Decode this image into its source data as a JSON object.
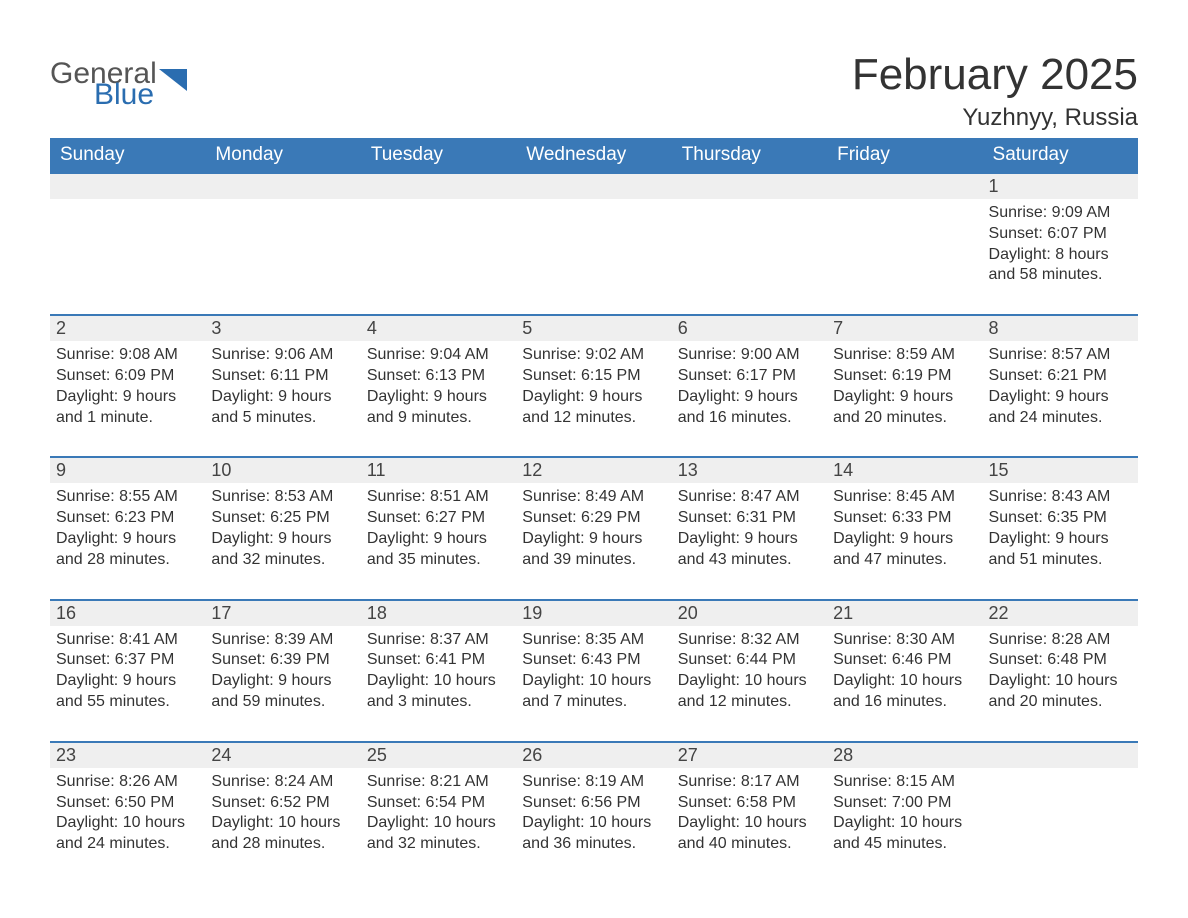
{
  "brand": {
    "part1": "General",
    "part2": "Blue"
  },
  "title": "February 2025",
  "location": "Yuzhnyy, Russia",
  "colors": {
    "header_bg": "#3a79b7",
    "header_text": "#ffffff",
    "daynum_bg": "#efefef",
    "border": "#3a79b7",
    "body_text": "#333333",
    "page_bg": "#ffffff"
  },
  "fonts": {
    "title_pt": 44,
    "location_pt": 24,
    "header_pt": 19,
    "daynum_pt": 18,
    "detail_pt": 16
  },
  "columns": [
    "Sunday",
    "Monday",
    "Tuesday",
    "Wednesday",
    "Thursday",
    "Friday",
    "Saturday"
  ],
  "weeks": [
    [
      null,
      null,
      null,
      null,
      null,
      null,
      {
        "n": "1",
        "sunrise": "9:09 AM",
        "sunset": "6:07 PM",
        "daylight": "8 hours and 58 minutes."
      }
    ],
    [
      {
        "n": "2",
        "sunrise": "9:08 AM",
        "sunset": "6:09 PM",
        "daylight": "9 hours and 1 minute."
      },
      {
        "n": "3",
        "sunrise": "9:06 AM",
        "sunset": "6:11 PM",
        "daylight": "9 hours and 5 minutes."
      },
      {
        "n": "4",
        "sunrise": "9:04 AM",
        "sunset": "6:13 PM",
        "daylight": "9 hours and 9 minutes."
      },
      {
        "n": "5",
        "sunrise": "9:02 AM",
        "sunset": "6:15 PM",
        "daylight": "9 hours and 12 minutes."
      },
      {
        "n": "6",
        "sunrise": "9:00 AM",
        "sunset": "6:17 PM",
        "daylight": "9 hours and 16 minutes."
      },
      {
        "n": "7",
        "sunrise": "8:59 AM",
        "sunset": "6:19 PM",
        "daylight": "9 hours and 20 minutes."
      },
      {
        "n": "8",
        "sunrise": "8:57 AM",
        "sunset": "6:21 PM",
        "daylight": "9 hours and 24 minutes."
      }
    ],
    [
      {
        "n": "9",
        "sunrise": "8:55 AM",
        "sunset": "6:23 PM",
        "daylight": "9 hours and 28 minutes."
      },
      {
        "n": "10",
        "sunrise": "8:53 AM",
        "sunset": "6:25 PM",
        "daylight": "9 hours and 32 minutes."
      },
      {
        "n": "11",
        "sunrise": "8:51 AM",
        "sunset": "6:27 PM",
        "daylight": "9 hours and 35 minutes."
      },
      {
        "n": "12",
        "sunrise": "8:49 AM",
        "sunset": "6:29 PM",
        "daylight": "9 hours and 39 minutes."
      },
      {
        "n": "13",
        "sunrise": "8:47 AM",
        "sunset": "6:31 PM",
        "daylight": "9 hours and 43 minutes."
      },
      {
        "n": "14",
        "sunrise": "8:45 AM",
        "sunset": "6:33 PM",
        "daylight": "9 hours and 47 minutes."
      },
      {
        "n": "15",
        "sunrise": "8:43 AM",
        "sunset": "6:35 PM",
        "daylight": "9 hours and 51 minutes."
      }
    ],
    [
      {
        "n": "16",
        "sunrise": "8:41 AM",
        "sunset": "6:37 PM",
        "daylight": "9 hours and 55 minutes."
      },
      {
        "n": "17",
        "sunrise": "8:39 AM",
        "sunset": "6:39 PM",
        "daylight": "9 hours and 59 minutes."
      },
      {
        "n": "18",
        "sunrise": "8:37 AM",
        "sunset": "6:41 PM",
        "daylight": "10 hours and 3 minutes."
      },
      {
        "n": "19",
        "sunrise": "8:35 AM",
        "sunset": "6:43 PM",
        "daylight": "10 hours and 7 minutes."
      },
      {
        "n": "20",
        "sunrise": "8:32 AM",
        "sunset": "6:44 PM",
        "daylight": "10 hours and 12 minutes."
      },
      {
        "n": "21",
        "sunrise": "8:30 AM",
        "sunset": "6:46 PM",
        "daylight": "10 hours and 16 minutes."
      },
      {
        "n": "22",
        "sunrise": "8:28 AM",
        "sunset": "6:48 PM",
        "daylight": "10 hours and 20 minutes."
      }
    ],
    [
      {
        "n": "23",
        "sunrise": "8:26 AM",
        "sunset": "6:50 PM",
        "daylight": "10 hours and 24 minutes."
      },
      {
        "n": "24",
        "sunrise": "8:24 AM",
        "sunset": "6:52 PM",
        "daylight": "10 hours and 28 minutes."
      },
      {
        "n": "25",
        "sunrise": "8:21 AM",
        "sunset": "6:54 PM",
        "daylight": "10 hours and 32 minutes."
      },
      {
        "n": "26",
        "sunrise": "8:19 AM",
        "sunset": "6:56 PM",
        "daylight": "10 hours and 36 minutes."
      },
      {
        "n": "27",
        "sunrise": "8:17 AM",
        "sunset": "6:58 PM",
        "daylight": "10 hours and 40 minutes."
      },
      {
        "n": "28",
        "sunrise": "8:15 AM",
        "sunset": "7:00 PM",
        "daylight": "10 hours and 45 minutes."
      },
      null
    ]
  ],
  "labels": {
    "sunrise": "Sunrise: ",
    "sunset": "Sunset: ",
    "daylight": "Daylight: "
  }
}
